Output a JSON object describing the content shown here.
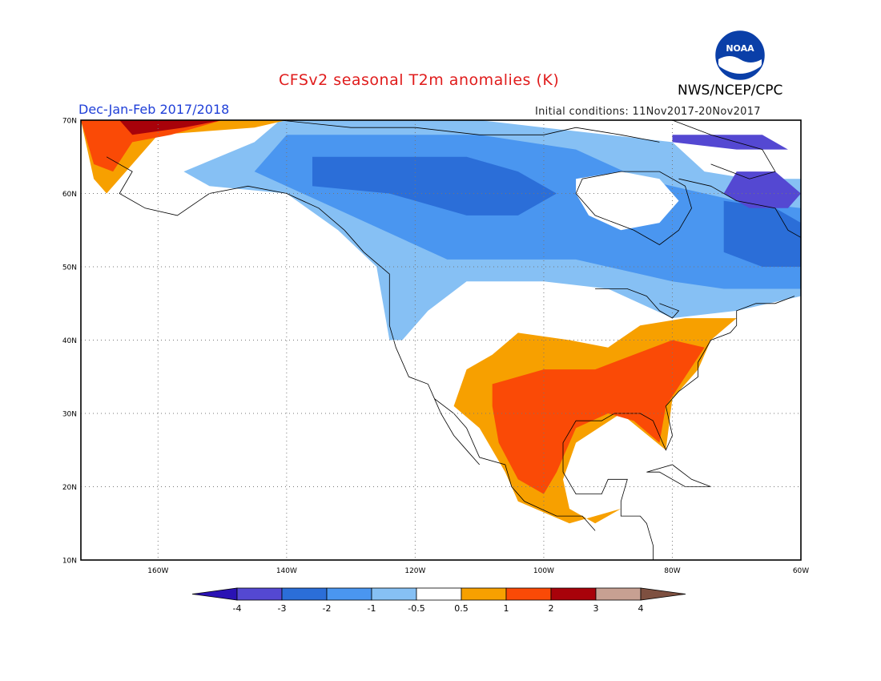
{
  "title": "CFSv2 seasonal T2m anomalies (K)",
  "period": "Dec-Jan-Feb 2017/2018",
  "initial_conditions": "Initial conditions: 11Nov2017-20Nov2017",
  "agency": "NWS/NCEP/CPC",
  "logo_text": "NOAA",
  "map": {
    "lon_range": [
      -172,
      -60
    ],
    "lat_range": [
      10,
      70
    ],
    "lon_ticks": [
      "160W",
      "140W",
      "120W",
      "100W",
      "80W",
      "60W"
    ],
    "lat_ticks": [
      "70N",
      "60N",
      "50N",
      "40N",
      "30N",
      "20N",
      "10N"
    ],
    "gridlines": "dotted"
  },
  "colorbar": {
    "ticks": [
      "-4",
      "-3",
      "-2",
      "-1",
      "-0.5",
      "0.5",
      "1",
      "2",
      "3",
      "4"
    ],
    "colors": [
      "#2a12b4",
      "#5448d2",
      "#2b6ed8",
      "#4a96f0",
      "#86c0f4",
      "#ffffff",
      "#f7a000",
      "#fa4a06",
      "#a8020a",
      "#c7a092",
      "#7e5040"
    ]
  },
  "colors": {
    "ocean": "#ffffff",
    "coastline": "#000000",
    "title": "#e01c1c",
    "period": "#1f3fd8"
  }
}
